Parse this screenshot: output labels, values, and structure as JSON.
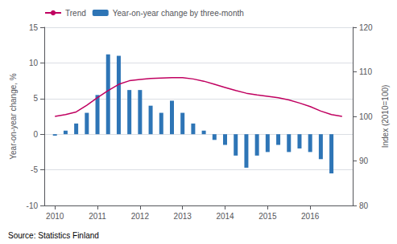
{
  "chart_data": {
    "type": "bar",
    "ylabel": "Year-on-year change, %",
    "y2label": "Index (2010=100)",
    "annotation": "Source: Statistics Finland",
    "xlim": [
      2009.75,
      2017.0
    ],
    "xticks": [
      2010,
      2011,
      2012,
      2013,
      2014,
      2015,
      2016
    ],
    "ylim": [
      -10,
      15
    ],
    "yticks": [
      -10,
      -5,
      0,
      5,
      10,
      15
    ],
    "y2lim": [
      80,
      120
    ],
    "y2ticks": [
      80,
      90,
      100,
      110,
      120
    ],
    "grid": true,
    "legend": "upper left",
    "series": [
      {
        "name": "Trend",
        "type": "line",
        "color": "#c00060",
        "axis": "y2",
        "x": [
          2010.0,
          2010.25,
          2010.5,
          2010.75,
          2011.0,
          2011.25,
          2011.5,
          2011.75,
          2012.0,
          2012.25,
          2012.5,
          2012.75,
          2013.0,
          2013.25,
          2013.5,
          2013.75,
          2014.0,
          2014.25,
          2014.5,
          2014.75,
          2015.0,
          2015.25,
          2015.5,
          2015.75,
          2016.0,
          2016.25,
          2016.5,
          2016.75
        ],
        "values": [
          100.0,
          100.4,
          101.0,
          102.5,
          104.2,
          105.8,
          107.2,
          108.0,
          108.3,
          108.5,
          108.6,
          108.7,
          108.7,
          108.4,
          107.9,
          107.2,
          106.5,
          105.8,
          105.2,
          104.8,
          104.5,
          104.2,
          103.7,
          103.0,
          102.2,
          101.2,
          100.4,
          100.0
        ]
      },
      {
        "name": "Year-on-year change by three-month",
        "type": "bar",
        "color": "#2e75b6",
        "x": [
          2010.0,
          2010.25,
          2010.5,
          2010.75,
          2011.0,
          2011.25,
          2011.5,
          2011.75,
          2012.0,
          2012.25,
          2012.5,
          2012.75,
          2013.0,
          2013.25,
          2013.5,
          2013.75,
          2014.0,
          2014.25,
          2014.5,
          2014.75,
          2015.0,
          2015.25,
          2015.5,
          2015.75,
          2016.0,
          2016.25,
          2016.5
        ],
        "values": [
          -0.2,
          0.5,
          1.5,
          3.0,
          5.5,
          11.2,
          11.0,
          6.2,
          6.2,
          4.0,
          3.0,
          4.7,
          3.0,
          1.5,
          0.5,
          -0.8,
          -1.5,
          -3.0,
          -4.7,
          -3.0,
          -2.5,
          -1.5,
          -2.5,
          -2.0,
          -2.5,
          -3.5,
          -5.5
        ]
      }
    ]
  }
}
